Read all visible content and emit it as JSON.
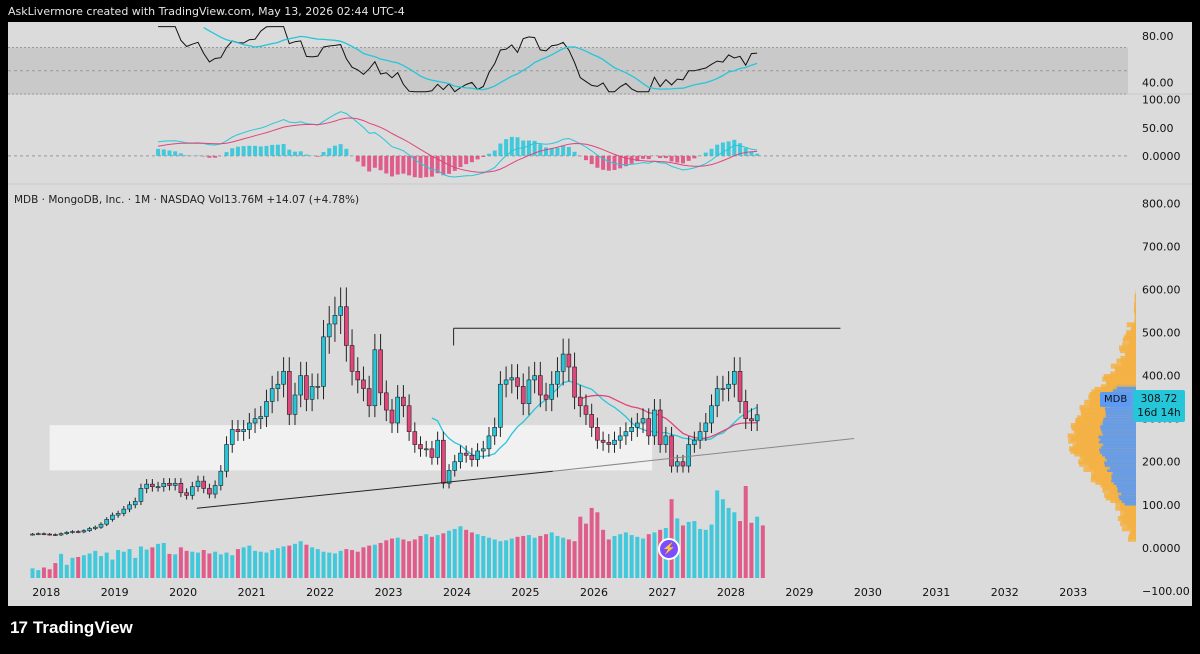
{
  "header": {
    "text": "AskLivermore created with TradingView.com, May 13, 2026 02:44 UTC-4"
  },
  "legend": {
    "text": "MDB · MongoDB, Inc. · 1M · NASDAQ  Vol13.76M  +14.07 (+4.78%)"
  },
  "footer": {
    "brand": "TradingView",
    "mark": "17"
  },
  "price_tag": {
    "symbol": "MDB",
    "price": "308.72",
    "countdown": "16d 14h"
  },
  "flash_icon": "lightning-icon",
  "colors": {
    "up": "#26c6da",
    "down": "#e0457b",
    "ma_blue": "#26c6da",
    "ma_red": "#e0457b",
    "vp_orange": "#f5b041",
    "vp_blue": "#5b9bf5"
  },
  "chart_data": [
    {
      "id": "rsi",
      "type": "line",
      "ticks": [
        "80.00",
        "40.00"
      ],
      "tick_values": [
        80,
        40
      ],
      "ylim": [
        30,
        92
      ]
    },
    {
      "id": "macd",
      "type": "line",
      "ticks": [
        "100.00",
        "50.00",
        "0.0000"
      ],
      "tick_values": [
        100,
        50,
        0
      ],
      "ylim": [
        -50,
        110
      ]
    },
    {
      "id": "price",
      "type": "candlestick",
      "title": "MDB · MongoDB, Inc. · 1M · NASDAQ",
      "x_ticks": [
        "2018",
        "2019",
        "2020",
        "2021",
        "2022",
        "2023",
        "2024",
        "2025",
        "2026",
        "2027",
        "2028",
        "2029",
        "2030",
        "2031",
        "2032",
        "2033"
      ],
      "y_ticks": [
        "800.00",
        "700.00",
        "600.00",
        "500.00",
        "400.00",
        "300.00",
        "200.00",
        "100.00",
        "0.0000",
        "−100.00"
      ],
      "y_tick_values": [
        800,
        700,
        600,
        500,
        400,
        300,
        200,
        100,
        0,
        -100
      ],
      "ylim": [
        -135,
        845
      ],
      "xlim": [
        2017.5,
        2033.8
      ],
      "series": [
        {
          "name": "MDB",
          "start": 2017.8,
          "interval_months": 1,
          "close": [
            32,
            33,
            32,
            31,
            30,
            33,
            36,
            38,
            37,
            40,
            45,
            48,
            55,
            66,
            76,
            80,
            90,
            100,
            108,
            138,
            148,
            142,
            142,
            150,
            145,
            150,
            128,
            122,
            142,
            155,
            138,
            125,
            145,
            178,
            240,
            275,
            270,
            275,
            290,
            300,
            305,
            340,
            370,
            380,
            410,
            310,
            355,
            400,
            345,
            375,
            375,
            490,
            520,
            540,
            560,
            470,
            410,
            390,
            370,
            330,
            460,
            360,
            320,
            290,
            350,
            330,
            270,
            240,
            230,
            230,
            210,
            250,
            150,
            180,
            200,
            220,
            215,
            205,
            225,
            230,
            260,
            280,
            380,
            390,
            395,
            375,
            335,
            390,
            400,
            355,
            345,
            380,
            410,
            450,
            420,
            350,
            330,
            310,
            280,
            250,
            245,
            240,
            250,
            260,
            270,
            280,
            290,
            300,
            260,
            320,
            240,
            260,
            190,
            200,
            190,
            240,
            250,
            270,
            290,
            330,
            370,
            370,
            380,
            410,
            340,
            300,
            295,
            309
          ]
        }
      ],
      "annotations": {
        "resistance_level": 510,
        "support_zone": [
          180,
          285
        ],
        "trendline_start": [
          2020.2,
          92
        ],
        "trendline_end": [
          2029.8,
          254
        ]
      }
    },
    {
      "id": "volume",
      "type": "bar",
      "series": [
        {
          "name": "Vol",
          "values": [
            22,
            18,
            24,
            20,
            34,
            55,
            30,
            46,
            48,
            52,
            56,
            62,
            50,
            58,
            42,
            64,
            60,
            66,
            46,
            72,
            65,
            70,
            78,
            80,
            55,
            54,
            70,
            62,
            60,
            58,
            64,
            56,
            60,
            54,
            58,
            52,
            66,
            70,
            74,
            62,
            60,
            58,
            64,
            68,
            72,
            74,
            78,
            84,
            76,
            70,
            66,
            60,
            58,
            56,
            62,
            66,
            64,
            60,
            70,
            74,
            76,
            80,
            86,
            90,
            92,
            88,
            84,
            88,
            96,
            100,
            94,
            98,
            102,
            108,
            112,
            118,
            110,
            104,
            100,
            96,
            92,
            88,
            84,
            86,
            90,
            94,
            96,
            98,
            92,
            96,
            100,
            104,
            96,
            92,
            88,
            84,
            140,
            124,
            160,
            150,
            110,
            88,
            96,
            100,
            104,
            98,
            94,
            90,
            100,
            104,
            110,
            114,
            180,
            136,
            120,
            128,
            130,
            112,
            110,
            122,
            200,
            180,
            160,
            150,
            130,
            210,
            126,
            140,
            120
          ]
        }
      ]
    }
  ]
}
